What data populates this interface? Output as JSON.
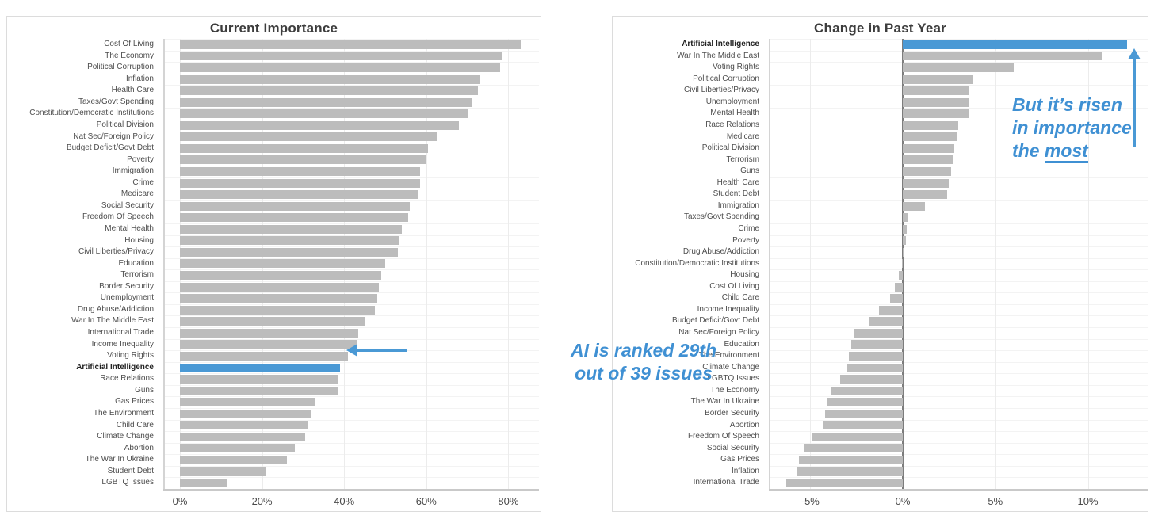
{
  "colors": {
    "highlight_blue": "#4a99d5",
    "annotation_blue": "#3f90d3",
    "bar_gray": "#bcbcbc",
    "title_gray": "#3d3d3d"
  },
  "chart_data": [
    {
      "type": "bar",
      "orientation": "horizontal",
      "title": "Current Importance",
      "xlabel": "",
      "ylabel": "",
      "xlim": [
        -4,
        87.5
      ],
      "xticks": [
        0,
        20,
        40,
        60,
        80
      ],
      "xtick_labels": [
        "0%",
        "20%",
        "40%",
        "60%",
        "80%"
      ],
      "grid": true,
      "bar_color": "#bcbcbc",
      "highlight_color": "#4a99d5",
      "highlight_index": 28,
      "categories": [
        "Cost Of Living",
        "The Economy",
        "Political Corruption",
        "Inflation",
        "Health Care",
        "Taxes/Govt Spending",
        "Constitution/Democratic Institutions",
        "Political Division",
        "Nat Sec/Foreign Policy",
        "Budget Deficit/Govt Debt",
        "Poverty",
        "Immigration",
        "Crime",
        "Medicare",
        "Social Security",
        "Freedom Of Speech",
        "Mental Health",
        "Housing",
        "Civil Liberties/Privacy",
        "Education",
        "Terrorism",
        "Border Security",
        "Unemployment",
        "Drug Abuse/Addiction",
        "War In The Middle East",
        "International Trade",
        "Income Inequality",
        "Voting Rights",
        "Artificial Intelligence",
        "Race Relations",
        "Guns",
        "Gas Prices",
        "The Environment",
        "Child Care",
        "Climate Change",
        "Abortion",
        "The War In Ukraine",
        "Student Debt",
        "LGBTQ Issues"
      ],
      "values": [
        83,
        78.5,
        78,
        73,
        72.5,
        71,
        70,
        68,
        62.5,
        60.5,
        60,
        58.5,
        58.5,
        58,
        56,
        55.5,
        54,
        53.5,
        53,
        50,
        49,
        48.5,
        48,
        47.5,
        45,
        43.5,
        43,
        41,
        39,
        38.5,
        38.5,
        33,
        32,
        31,
        30.5,
        28,
        26,
        21,
        11.5
      ],
      "annotation": {
        "lines": [
          "AI is ranked 29th",
          "out of 39 issues"
        ],
        "arrow": "left-arrow pointing at Artificial Intelligence bar"
      }
    },
    {
      "type": "bar",
      "orientation": "horizontal",
      "title": "Change in Past Year",
      "xlabel": "",
      "ylabel": "",
      "xlim": [
        -7.2,
        13.2
      ],
      "xticks": [
        -5,
        0,
        5,
        10
      ],
      "xtick_labels": [
        "-5%",
        "0%",
        "5%",
        "10%"
      ],
      "grid": true,
      "zero_line": true,
      "bar_color": "#bcbcbc",
      "highlight_color": "#4a99d5",
      "highlight_index": 0,
      "categories": [
        "Artificial Intelligence",
        "War In The Middle East",
        "Voting Rights",
        "Political Corruption",
        "Civil Liberties/Privacy",
        "Unemployment",
        "Mental Health",
        "Race Relations",
        "Medicare",
        "Political Division",
        "Terrorism",
        "Guns",
        "Health Care",
        "Student Debt",
        "Immigration",
        "Taxes/Govt Spending",
        "Crime",
        "Poverty",
        "Drug Abuse/Addiction",
        "Constitution/Democratic Institutions",
        "Housing",
        "Cost Of Living",
        "Child Care",
        "Income Inequality",
        "Budget Deficit/Govt Debt",
        "Nat Sec/Foreign Policy",
        "Education",
        "The Environment",
        "Climate Change",
        "LGBTQ Issues",
        "The Economy",
        "The War In Ukraine",
        "Border Security",
        "Abortion",
        "Freedom Of Speech",
        "Social Security",
        "Gas Prices",
        "Inflation",
        "International Trade"
      ],
      "values": [
        12.1,
        10.8,
        6.0,
        3.8,
        3.6,
        3.6,
        3.6,
        3.0,
        2.9,
        2.8,
        2.7,
        2.6,
        2.5,
        2.4,
        1.2,
        0.25,
        0.2,
        0.15,
        0.05,
        -0.05,
        -0.2,
        -0.45,
        -0.7,
        -1.3,
        -1.8,
        -2.6,
        -2.8,
        -2.9,
        -3.0,
        -3.4,
        -3.9,
        -4.1,
        -4.2,
        -4.3,
        -4.9,
        -5.3,
        -5.6,
        -5.7,
        -6.3
      ],
      "annotation": {
        "lines": [
          "But it’s risen",
          "in importance",
          {
            "prefix": "the ",
            "underlined": "most"
          }
        ],
        "arrow": "up-arrow pointing at Artificial Intelligence bar"
      }
    }
  ]
}
